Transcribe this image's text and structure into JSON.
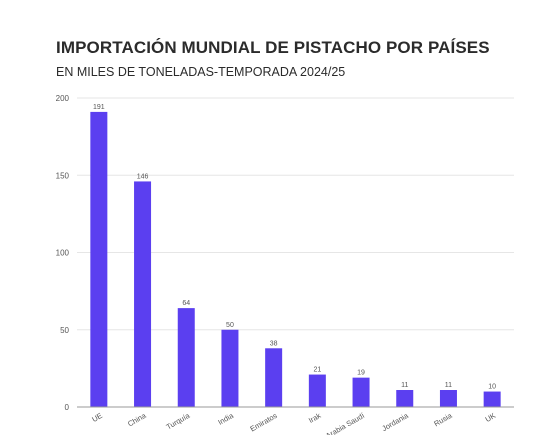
{
  "title": "IMPORTACIÓN MUNDIAL DE PISTACHO POR PAÍSES",
  "subtitle": "EN MILES DE TONELADAS-TEMPORADA 2024/25",
  "colors": {
    "bar": "#5b3ff0",
    "grid": "#e6e6e6",
    "axis": "#9a9a9a"
  },
  "chart_data": {
    "type": "bar",
    "title": "IMPORTACIÓN MUNDIAL DE PISTACHO POR PAÍSES",
    "subtitle": "EN MILES DE TONELADAS-TEMPORADA 2024/25",
    "xlabel": "",
    "ylabel": "",
    "ylim": [
      0,
      200
    ],
    "yticks": [
      0,
      50,
      100,
      150,
      200
    ],
    "grid": true,
    "categories": [
      "UE",
      "China",
      "Turquía",
      "India",
      "Emiratos",
      "Irak",
      "Arabia Saudí",
      "Jordania",
      "Rusia",
      "UK"
    ],
    "values": [
      191,
      146,
      64,
      50,
      38,
      21,
      19,
      11,
      11,
      10
    ],
    "data_labels": [
      "191",
      "146",
      "64",
      "50",
      "38",
      "21",
      "19",
      "11",
      "11",
      "10"
    ]
  }
}
